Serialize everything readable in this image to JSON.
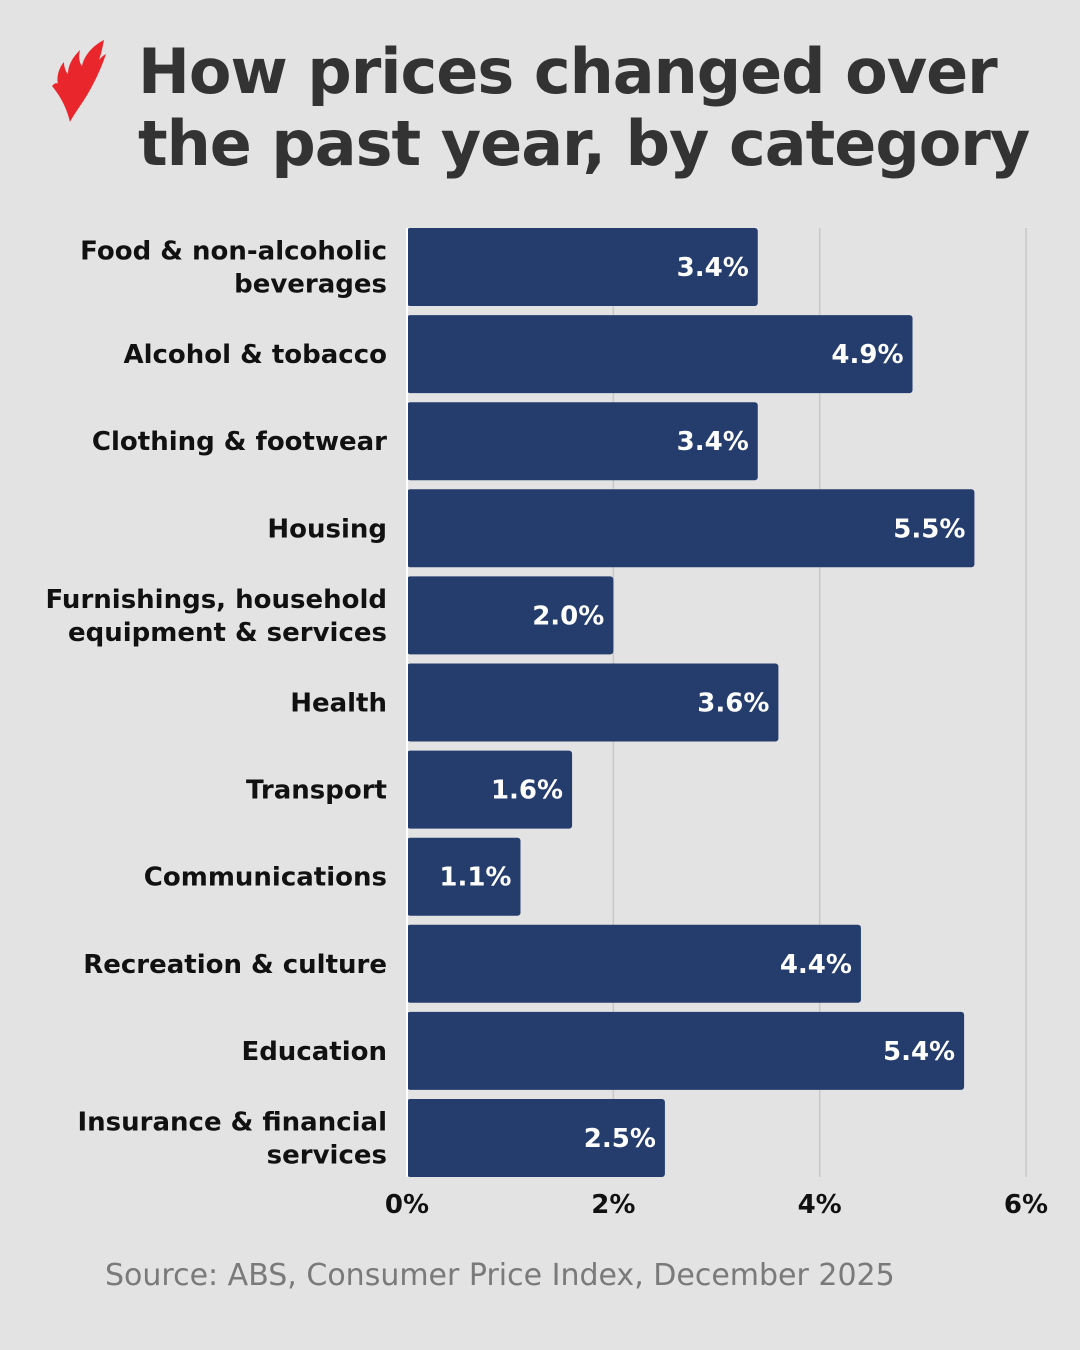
{
  "title": "How prices changed over the past year, by category",
  "logo": "SBS flame logo",
  "source": "Source: ABS, Consumer Price Index, December 2025",
  "colors": {
    "background": "#e3e3e3",
    "bar": "#253d6d",
    "logo": "#e8262b",
    "grid": "#c8c8c8"
  },
  "chart_data": {
    "type": "bar",
    "orientation": "horizontal",
    "title": "How prices changed over the past year, by category",
    "categories": [
      [
        "Food & non-alcoholic",
        "beverages"
      ],
      [
        "Alcohol & tobacco"
      ],
      [
        "Clothing & footwear"
      ],
      [
        "Housing"
      ],
      [
        "Furnishings, household",
        "equipment & services"
      ],
      [
        "Health"
      ],
      [
        "Transport"
      ],
      [
        "Communications"
      ],
      [
        "Recreation & culture"
      ],
      [
        "Education"
      ],
      [
        "Insurance & financial",
        "services"
      ]
    ],
    "values": [
      3.4,
      4.9,
      3.4,
      5.5,
      2.0,
      3.6,
      1.6,
      1.1,
      4.4,
      5.4,
      2.5
    ],
    "data_labels": [
      "3.4%",
      "4.9%",
      "3.4%",
      "5.5%",
      "2.0%",
      "3.6%",
      "1.6%",
      "1.1%",
      "4.4%",
      "5.4%",
      "2.5%"
    ],
    "xlim": [
      0,
      6
    ],
    "xticks": [
      0,
      2,
      4,
      6
    ],
    "xtick_labels": [
      "0%",
      "2%",
      "4%",
      "6%"
    ],
    "grid": true,
    "xlabel": "",
    "ylabel": ""
  }
}
